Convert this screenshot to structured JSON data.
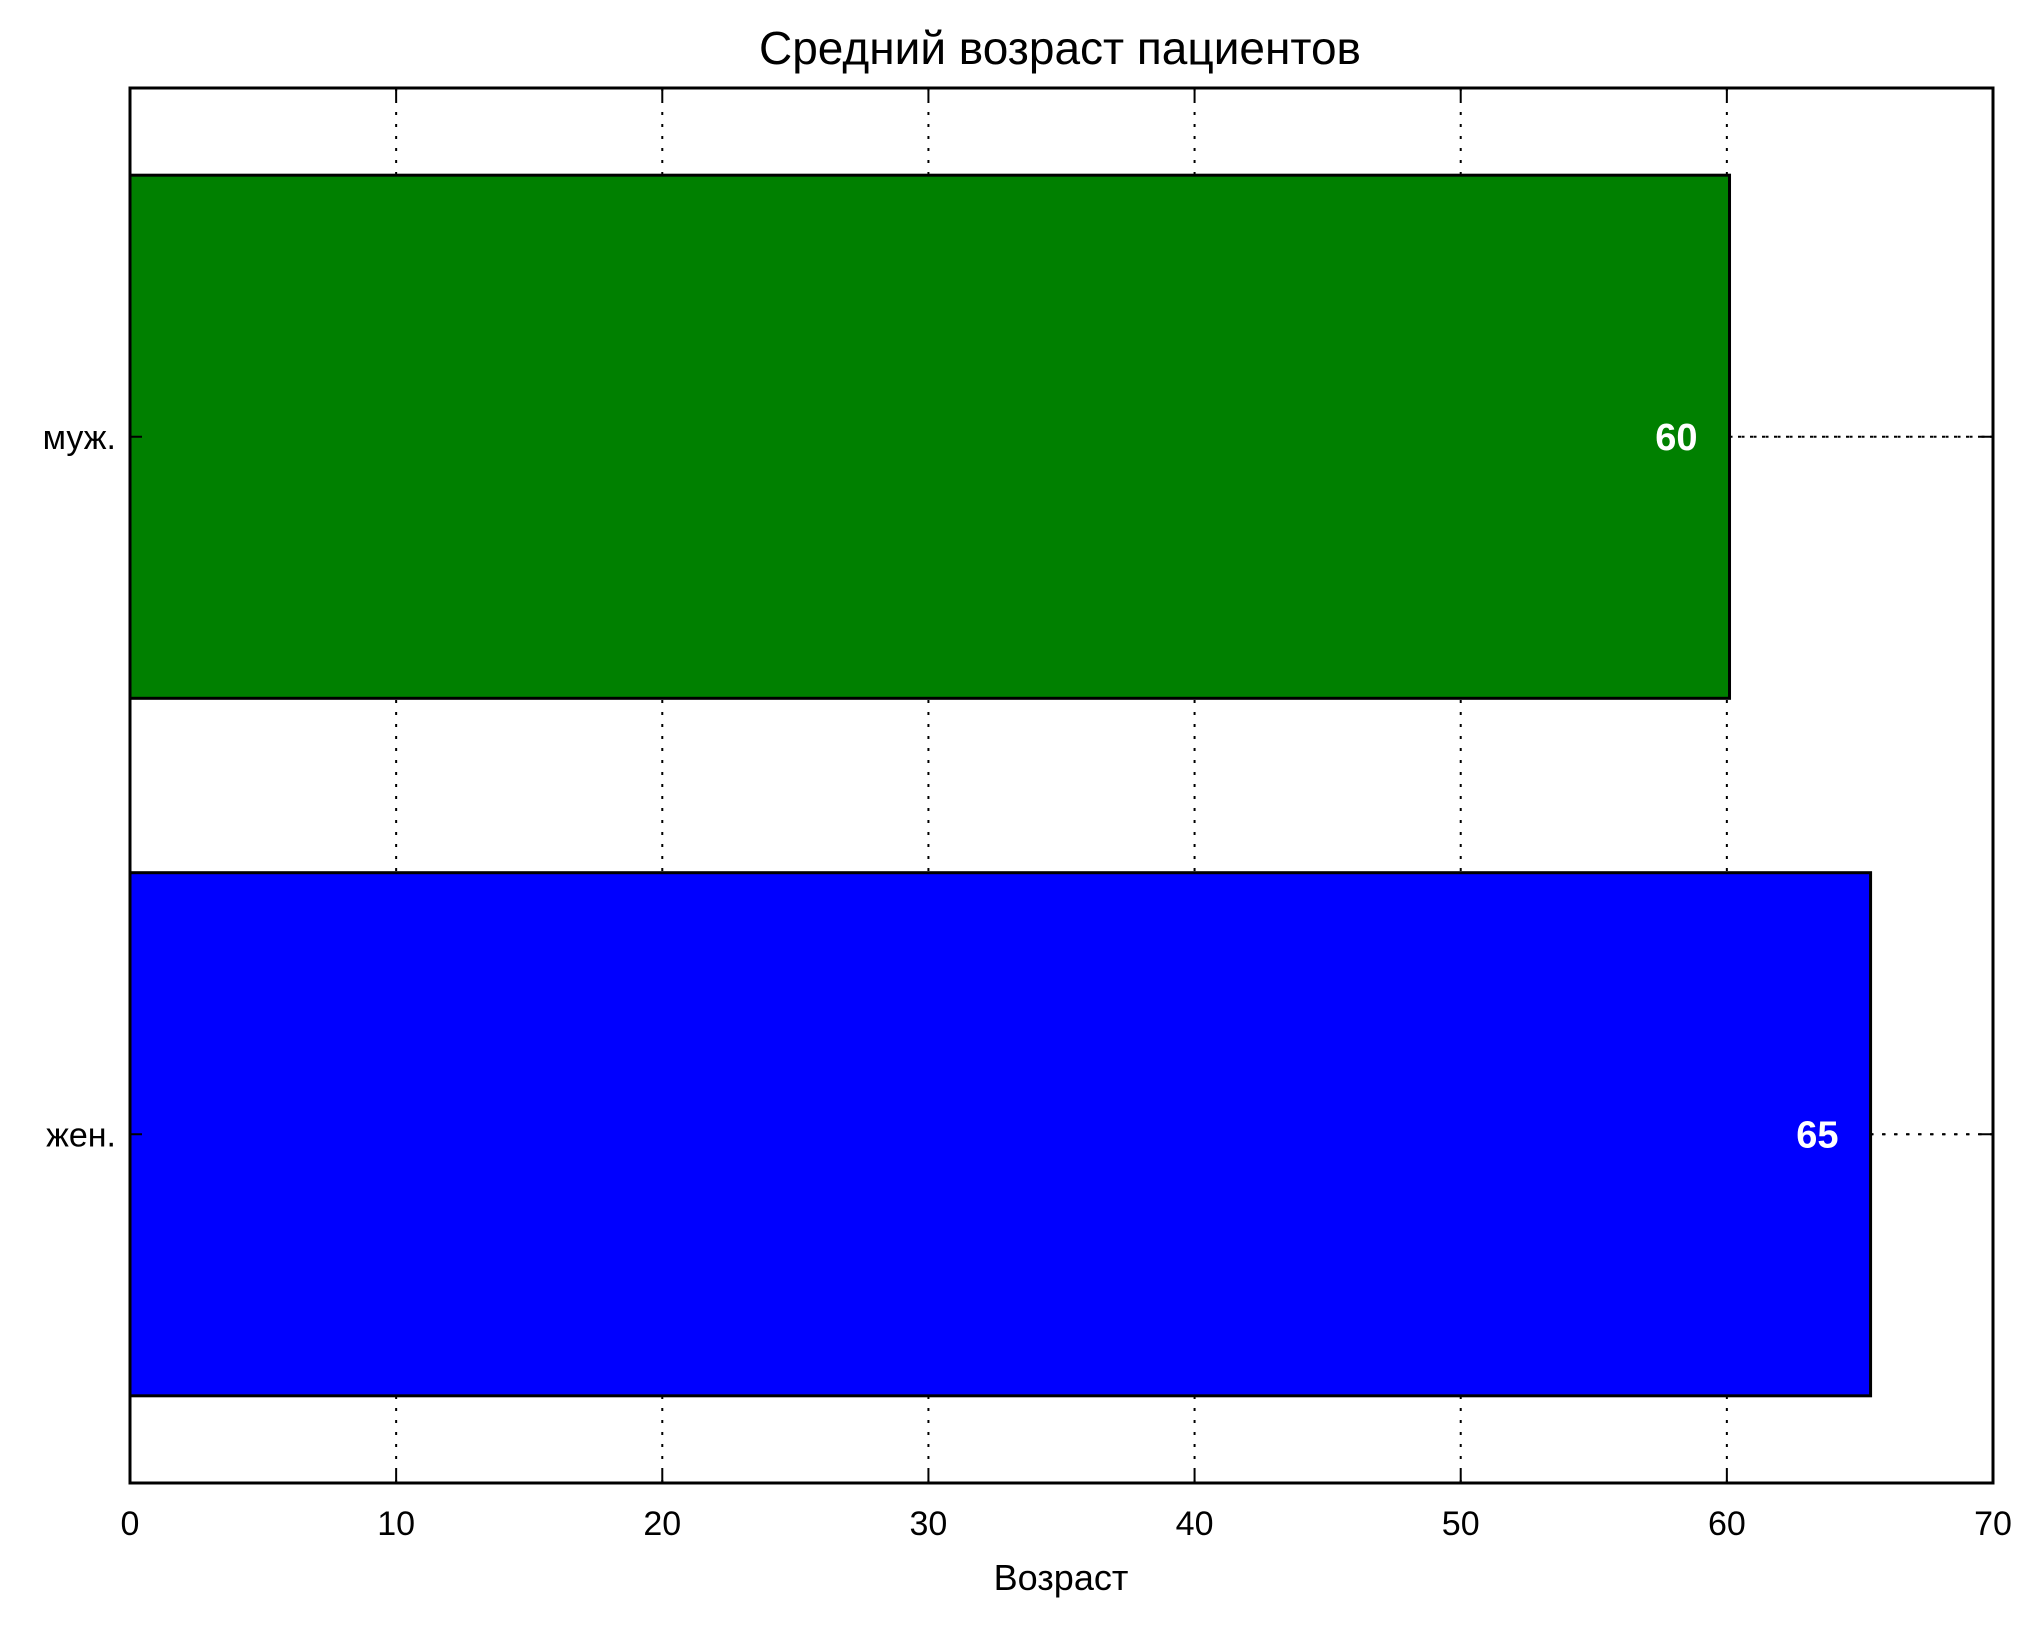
{
  "chart_data": {
    "type": "bar",
    "orientation": "horizontal",
    "title": "Средний возраст пациентов",
    "xlabel": "Возраст",
    "ylabel": "",
    "categories": [
      "муж.",
      "жен."
    ],
    "values": [
      60.1,
      65.4
    ],
    "value_labels": [
      "60",
      "65"
    ],
    "colors": [
      "#008000",
      "#0000ff"
    ],
    "xlim": [
      0,
      70
    ],
    "xticks": [
      0,
      10,
      20,
      30,
      40,
      50,
      60,
      70
    ],
    "xtick_labels": [
      "0",
      "10",
      "20",
      "30",
      "40",
      "50",
      "60",
      "70"
    ],
    "grid": true,
    "legend": false
  }
}
